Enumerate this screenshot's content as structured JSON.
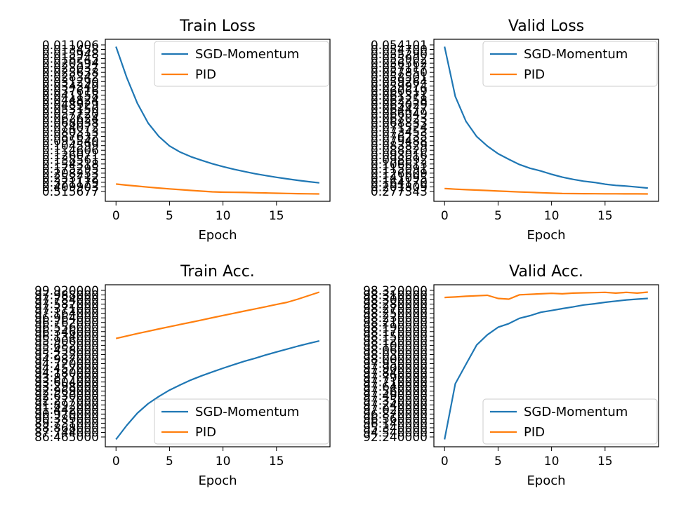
{
  "colors": {
    "series_1": "#1f77b4",
    "series_2": "#ff7f0e"
  },
  "chart_data": [
    {
      "type": "line",
      "title": "Train Loss",
      "xlabel": "Epoch",
      "ylabel": "",
      "xlim": [
        -1.0,
        20.0
      ],
      "xticks": [
        "0",
        "5",
        "10",
        "15"
      ],
      "legend_position": "upper-right",
      "ytick_labels": [
        "0.515677",
        "0.409903",
        "0.321179",
        "0.253712",
        "0.208253",
        "0.175295",
        "0.154318",
        "0.138561",
        "0.126071",
        "0.114606",
        "0.104599",
        "0.095540",
        "0.087632",
        "0.080313",
        "0.074072",
        "0.068038",
        "0.062624",
        "0.057720",
        "0.053150",
        "0.048929",
        "0.044824",
        "0.041158",
        "0.037616",
        "0.034340",
        "0.031290",
        "0.028342",
        "0.025638",
        "0.023037",
        "0.020594",
        "0.018245",
        "0.015948",
        "0.013458",
        "0.011006"
      ],
      "series": [
        {
          "name": "SGD-Momentum",
          "values": [
            0.515677,
            0.409903,
            0.321179,
            0.253712,
            0.208253,
            0.175295,
            0.154318,
            0.138561,
            0.126071,
            0.114606,
            0.104599,
            0.09554,
            0.087632,
            0.080313,
            0.074072,
            0.068038,
            0.062624,
            0.05772,
            0.05315,
            0.048929
          ]
        },
        {
          "name": "PID",
          "values": [
            0.044824,
            0.041158,
            0.037616,
            0.03434,
            0.03129,
            0.028342,
            0.025638,
            0.023037,
            0.020594,
            0.018245,
            0.017102,
            0.016611,
            0.015948,
            0.015201,
            0.01446,
            0.013458,
            0.0127,
            0.012002,
            0.0115,
            0.011006
          ]
        }
      ]
    },
    {
      "type": "line",
      "title": "Valid Loss",
      "xlabel": "Epoch",
      "ylabel": "",
      "xlim": [
        -1.0,
        20.0
      ],
      "xticks": [
        "0",
        "5",
        "10",
        "15"
      ],
      "legend_position": "upper-right",
      "ytick_labels": [
        "0.277343",
        "0.201809",
        "0.164170",
        "0.141095",
        "0.126609",
        "0.115091",
        "0.106613",
        "0.098692",
        "0.093016",
        "0.088820",
        "0.083829",
        "0.079488",
        "0.076235",
        "0.073453",
        "0.071524",
        "0.068833",
        "0.067023",
        "0.066049",
        "0.064477",
        "0.063029",
        "0.062258",
        "0.061371",
        "0.060619",
        "0.059974",
        "0.059264",
        "0.058501",
        "0.057850",
        "0.057117",
        "0.056562",
        "0.055902",
        "0.055290",
        "0.054700",
        "0.054101"
      ],
      "series": [
        {
          "name": "SGD-Momentum",
          "values": [
            0.277343,
            0.201809,
            0.16417,
            0.141095,
            0.126609,
            0.115091,
            0.106613,
            0.098692,
            0.093016,
            0.08882,
            0.083829,
            0.079488,
            0.076235,
            0.073453,
            0.071524,
            0.068833,
            0.067023,
            0.066049,
            0.064477,
            0.063029
          ]
        },
        {
          "name": "PID",
          "values": [
            0.062258,
            0.061371,
            0.060619,
            0.059974,
            0.059264,
            0.058501,
            0.05785,
            0.057117,
            0.056562,
            0.055902,
            0.05529,
            0.0547,
            0.054601,
            0.054501,
            0.054401,
            0.054351,
            0.054301,
            0.054251,
            0.054171,
            0.054101
          ]
        }
      ]
    },
    {
      "type": "line",
      "title": "Train Acc.",
      "xlabel": "Epoch",
      "ylabel": "",
      "xlim": [
        -1.0,
        20.0
      ],
      "xticks": [
        "0",
        "5",
        "10",
        "15"
      ],
      "legend_position": "lower-right",
      "ytick_labels": [
        "86.465000",
        "87.744000",
        "88.868000",
        "89.731000",
        "90.389000",
        "90.970000",
        "91.442000",
        "91.892000",
        "92.277000",
        "92.630000",
        "92.969000",
        "93.298000",
        "93.604000",
        "93.877000",
        "94.180000",
        "94.457000",
        "94.720000",
        "94.987000",
        "95.232000",
        "95.458000",
        "95.682000",
        "95.906000",
        "96.134000",
        "96.346000",
        "96.556000",
        "96.762000",
        "96.964000",
        "97.164000",
        "97.371000",
        "97.582000",
        "97.784000",
        "97.988000",
        "99.920000"
      ],
      "series": [
        {
          "name": "SGD-Momentum",
          "values": [
            86.465,
            87.744,
            88.868,
            89.731,
            90.389,
            90.97,
            91.442,
            91.892,
            92.277,
            92.63,
            92.969,
            93.298,
            93.604,
            93.877,
            94.18,
            94.457,
            94.72,
            94.987,
            95.232,
            95.458
          ]
        },
        {
          "name": "PID",
          "values": [
            95.682,
            95.906,
            96.134,
            96.346,
            96.556,
            96.762,
            96.964,
            97.164,
            97.371,
            97.582,
            97.784,
            97.988,
            98.19,
            98.39,
            98.59,
            98.79,
            98.99,
            99.28,
            99.6,
            99.92
          ]
        }
      ]
    },
    {
      "type": "line",
      "title": "Valid Acc.",
      "xlabel": "Epoch",
      "ylabel": "",
      "xlim": [
        -1.0,
        20.0
      ],
      "xticks": [
        "0",
        "5",
        "10",
        "15"
      ],
      "legend_position": "lower-right",
      "ytick_labels": [
        "92.240000",
        "94.540000",
        "95.340000",
        "96.140000",
        "96.560000",
        "96.870000",
        "97.020000",
        "97.240000",
        "97.350000",
        "97.490000",
        "97.560000",
        "97.640000",
        "97.710000",
        "97.790000",
        "97.840000",
        "97.900000",
        "97.950000",
        "98.000000",
        "98.030000",
        "98.060000",
        "98.100000",
        "98.120000",
        "98.150000",
        "98.170000",
        "98.190000",
        "98.210000",
        "98.230000",
        "98.250000",
        "98.270000",
        "98.280000",
        "98.300000",
        "98.310000",
        "98.320000"
      ],
      "series": [
        {
          "name": "SGD-Momentum",
          "values": [
            92.24,
            94.54,
            95.34,
            96.14,
            96.56,
            96.87,
            97.02,
            97.24,
            97.35,
            97.49,
            97.56,
            97.64,
            97.71,
            97.79,
            97.84,
            97.9,
            97.95,
            98.0,
            98.03,
            98.06
          ]
        },
        {
          "name": "PID",
          "values": [
            98.1,
            98.12,
            98.15,
            98.17,
            98.19,
            98.06,
            98.03,
            98.21,
            98.23,
            98.25,
            98.27,
            98.25,
            98.28,
            98.29,
            98.3,
            98.31,
            98.28,
            98.31,
            98.28,
            98.32
          ]
        }
      ]
    }
  ]
}
